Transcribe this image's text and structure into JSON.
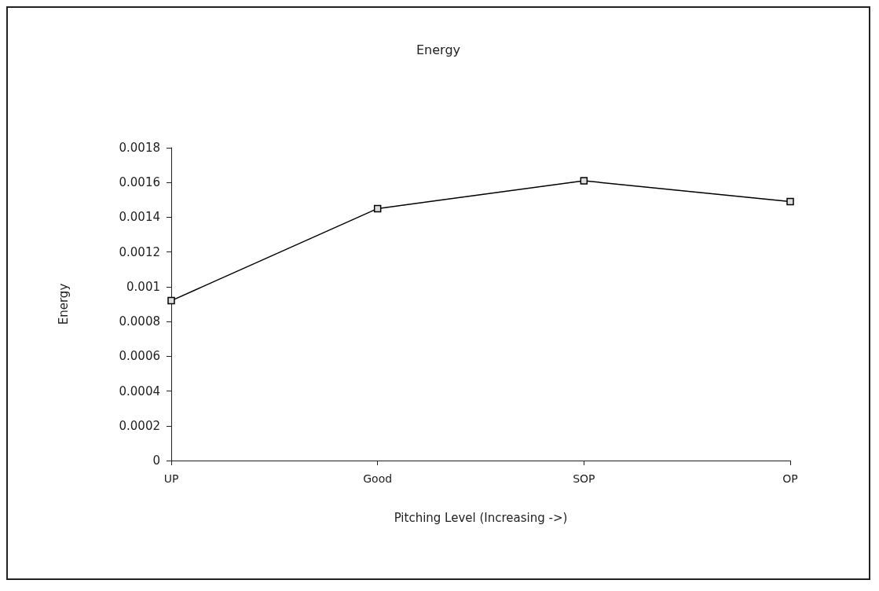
{
  "chart_data": {
    "type": "line",
    "title": "Energy",
    "xlabel": "Pitching Level (Increasing ->)",
    "ylabel": "Energy",
    "categories": [
      "UP",
      "Good",
      "SOP",
      "OP"
    ],
    "series": [
      {
        "color": "#000000",
        "values": [
          0.00092,
          0.00145,
          0.00161,
          0.00149
        ]
      }
    ],
    "ylim": [
      0,
      0.0018
    ],
    "yticks": [
      0,
      0.0002,
      0.0004,
      0.0006,
      0.0008,
      0.001,
      0.0012,
      0.0014,
      0.0016,
      0.0018
    ],
    "grid": false,
    "marker": "square",
    "line_style": "solid"
  }
}
